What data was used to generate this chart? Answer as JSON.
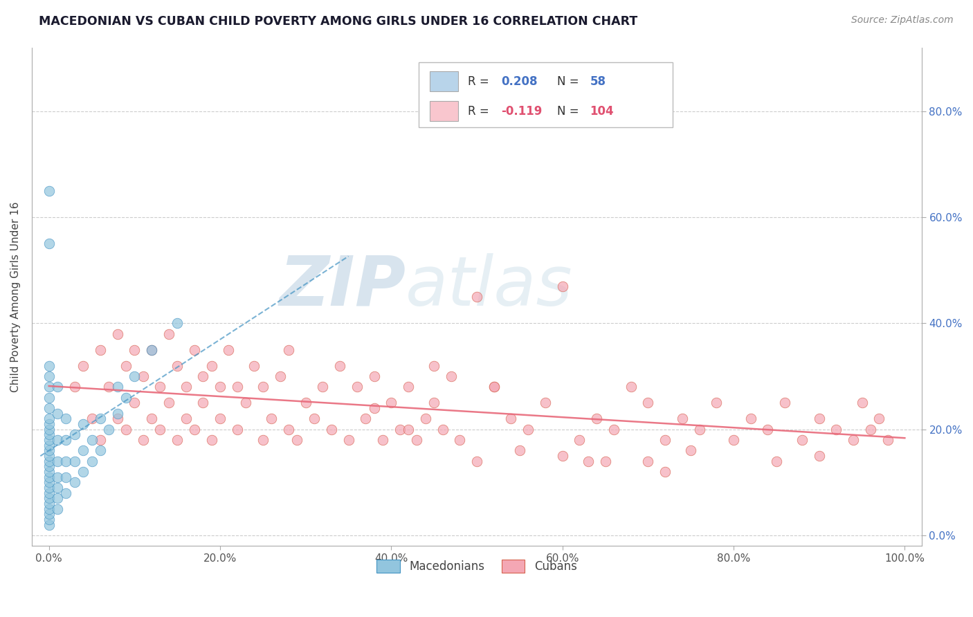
{
  "title": "MACEDONIAN VS CUBAN CHILD POVERTY AMONG GIRLS UNDER 16 CORRELATION CHART",
  "source": "Source: ZipAtlas.com",
  "ylabel": "Child Poverty Among Girls Under 16",
  "xlim": [
    -0.02,
    1.02
  ],
  "ylim": [
    -0.02,
    0.92
  ],
  "xticks": [
    0.0,
    0.2,
    0.4,
    0.6,
    0.8,
    1.0
  ],
  "xticklabels": [
    "0.0%",
    "20.0%",
    "40.0%",
    "60.0%",
    "80.0%",
    "100.0%"
  ],
  "yticks": [
    0.0,
    0.2,
    0.4,
    0.6,
    0.8
  ],
  "yticklabels": [
    "0.0%",
    "20.0%",
    "40.0%",
    "60.0%",
    "80.0%"
  ],
  "macedonian_color": "#92c5de",
  "cuban_color": "#f4a7b4",
  "macedonian_edge": "#4393c3",
  "cuban_edge": "#d6604d",
  "trend_mac_color": "#4393c3",
  "trend_cub_color": "#e8697a",
  "R_mac": 0.208,
  "N_mac": 58,
  "R_cub": -0.119,
  "N_cub": 104,
  "legend_mac_color": "#b8d4ea",
  "legend_cub_color": "#f9c6ce",
  "background_color": "#ffffff",
  "grid_color": "#cccccc",
  "tick_color": "#4472c4",
  "watermark_color": "#c8d8e8",
  "mac_x": [
    0.0,
    0.0,
    0.0,
    0.0,
    0.0,
    0.0,
    0.0,
    0.0,
    0.0,
    0.0,
    0.0,
    0.0,
    0.0,
    0.0,
    0.0,
    0.0,
    0.0,
    0.0,
    0.0,
    0.0,
    0.0,
    0.0,
    0.0,
    0.0,
    0.0,
    0.0,
    0.0,
    0.0,
    0.01,
    0.01,
    0.01,
    0.01,
    0.01,
    0.01,
    0.01,
    0.01,
    0.02,
    0.02,
    0.02,
    0.02,
    0.02,
    0.03,
    0.03,
    0.03,
    0.04,
    0.04,
    0.04,
    0.05,
    0.05,
    0.06,
    0.06,
    0.07,
    0.08,
    0.08,
    0.09,
    0.1,
    0.12,
    0.15
  ],
  "mac_y": [
    0.02,
    0.03,
    0.04,
    0.05,
    0.06,
    0.07,
    0.08,
    0.09,
    0.1,
    0.11,
    0.12,
    0.13,
    0.14,
    0.15,
    0.16,
    0.17,
    0.18,
    0.19,
    0.2,
    0.21,
    0.22,
    0.24,
    0.26,
    0.28,
    0.3,
    0.32,
    0.65,
    0.55,
    0.05,
    0.07,
    0.09,
    0.11,
    0.14,
    0.18,
    0.23,
    0.28,
    0.08,
    0.11,
    0.14,
    0.18,
    0.22,
    0.1,
    0.14,
    0.19,
    0.12,
    0.16,
    0.21,
    0.14,
    0.18,
    0.16,
    0.22,
    0.2,
    0.23,
    0.28,
    0.26,
    0.3,
    0.35,
    0.4
  ],
  "cub_x": [
    0.03,
    0.04,
    0.05,
    0.06,
    0.06,
    0.07,
    0.08,
    0.08,
    0.09,
    0.09,
    0.1,
    0.1,
    0.11,
    0.11,
    0.12,
    0.12,
    0.13,
    0.13,
    0.14,
    0.14,
    0.15,
    0.15,
    0.16,
    0.16,
    0.17,
    0.17,
    0.18,
    0.18,
    0.19,
    0.19,
    0.2,
    0.2,
    0.21,
    0.22,
    0.22,
    0.23,
    0.24,
    0.25,
    0.25,
    0.26,
    0.27,
    0.28,
    0.28,
    0.29,
    0.3,
    0.31,
    0.32,
    0.33,
    0.34,
    0.35,
    0.36,
    0.37,
    0.38,
    0.39,
    0.4,
    0.41,
    0.42,
    0.43,
    0.44,
    0.45,
    0.46,
    0.47,
    0.48,
    0.5,
    0.52,
    0.54,
    0.56,
    0.58,
    0.6,
    0.62,
    0.64,
    0.66,
    0.68,
    0.7,
    0.72,
    0.74,
    0.76,
    0.78,
    0.8,
    0.82,
    0.84,
    0.86,
    0.88,
    0.9,
    0.92,
    0.94,
    0.95,
    0.96,
    0.97,
    0.98,
    0.5,
    0.6,
    0.7,
    0.9,
    0.38,
    0.42,
    0.55,
    0.65,
    0.75,
    0.85,
    0.45,
    0.52,
    0.63,
    0.72
  ],
  "cub_y": [
    0.28,
    0.32,
    0.22,
    0.18,
    0.35,
    0.28,
    0.22,
    0.38,
    0.2,
    0.32,
    0.25,
    0.35,
    0.18,
    0.3,
    0.22,
    0.35,
    0.2,
    0.28,
    0.25,
    0.38,
    0.18,
    0.32,
    0.22,
    0.28,
    0.2,
    0.35,
    0.25,
    0.3,
    0.18,
    0.32,
    0.22,
    0.28,
    0.35,
    0.2,
    0.28,
    0.25,
    0.32,
    0.18,
    0.28,
    0.22,
    0.3,
    0.2,
    0.35,
    0.18,
    0.25,
    0.22,
    0.28,
    0.2,
    0.32,
    0.18,
    0.28,
    0.22,
    0.3,
    0.18,
    0.25,
    0.2,
    0.28,
    0.18,
    0.22,
    0.25,
    0.2,
    0.3,
    0.18,
    0.45,
    0.28,
    0.22,
    0.2,
    0.25,
    0.47,
    0.18,
    0.22,
    0.2,
    0.28,
    0.25,
    0.18,
    0.22,
    0.2,
    0.25,
    0.18,
    0.22,
    0.2,
    0.25,
    0.18,
    0.22,
    0.2,
    0.18,
    0.25,
    0.2,
    0.22,
    0.18,
    0.14,
    0.15,
    0.14,
    0.15,
    0.24,
    0.2,
    0.16,
    0.14,
    0.16,
    0.14,
    0.32,
    0.28,
    0.14,
    0.12
  ]
}
